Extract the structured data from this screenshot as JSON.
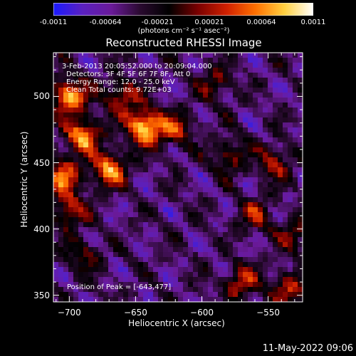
{
  "colorbar": {
    "ticks": [
      "-0.0011",
      "-0.00064",
      "-0.00021",
      "0.00021",
      "0.00064",
      "0.0011"
    ],
    "unit": "(photons cm⁻² s⁻¹ asec⁻²)",
    "colors": [
      "#1a1aff",
      "#5a20c0",
      "#6a1a9a",
      "#2a0a30",
      "#000000",
      "#7a0000",
      "#d02000",
      "#ff7000",
      "#ffd040",
      "#ffffff"
    ]
  },
  "info": {
    "time_range": "3-Feb-2013 20:05:52.000 to 20:09:04.000",
    "detectors": "Detectors: 3F 4F 5F 6F 7F 8F, Att 0",
    "energy": "Energy Range: 12.0 - 25.0 keV",
    "clean": "Clean    Total counts: 9.72E+03",
    "peak": "Position of Peak = [-643,477]"
  },
  "timestamp": "11-May-2022 09:06",
  "chart_data": {
    "type": "heatmap",
    "title": "Reconstructed RHESSI Image",
    "xlabel": "Heliocentric X (arcsec)",
    "ylabel": "Heliocentric Y (arcsec)",
    "xlim": [
      -712,
      -524
    ],
    "ylim": [
      345,
      533
    ],
    "xticks": [
      -700,
      -650,
      -600,
      -550
    ],
    "yticks": [
      350,
      400,
      450,
      500
    ],
    "zlim": [
      -0.0011,
      0.0011
    ],
    "peak": {
      "x": -643,
      "y": 477
    },
    "sources": [
      {
        "x": -643,
        "y": 477,
        "amp": 1.0
      },
      {
        "x": -700,
        "y": 500,
        "amp": 0.85
      },
      {
        "x": -690,
        "y": 470,
        "amp": 0.8
      },
      {
        "x": -670,
        "y": 445,
        "amp": 0.75
      },
      {
        "x": -705,
        "y": 440,
        "amp": 0.65
      },
      {
        "x": -700,
        "y": 415,
        "amp": 0.55
      },
      {
        "x": -660,
        "y": 500,
        "amp": 0.55
      },
      {
        "x": -620,
        "y": 475,
        "amp": 0.5
      },
      {
        "x": -580,
        "y": 455,
        "amp": 0.4
      },
      {
        "x": -545,
        "y": 450,
        "amp": 0.45
      },
      {
        "x": -560,
        "y": 410,
        "amp": 0.4
      },
      {
        "x": -590,
        "y": 510,
        "amp": 0.35
      },
      {
        "x": -530,
        "y": 395,
        "amp": 0.35
      },
      {
        "x": -570,
        "y": 360,
        "amp": 0.5
      },
      {
        "x": -535,
        "y": 355,
        "amp": 0.5
      },
      {
        "x": -690,
        "y": 380,
        "amp": 0.35
      }
    ]
  }
}
